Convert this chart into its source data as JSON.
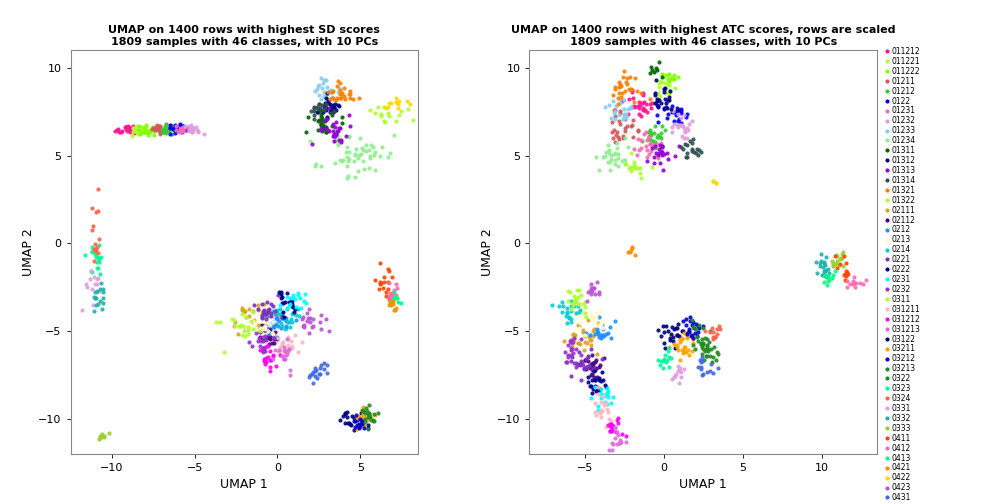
{
  "title1": "UMAP on 1400 rows with highest SD scores\n1809 samples with 46 classes, with 10 PCs",
  "title2": "UMAP on 1400 rows with highest ATC scores, rows are scaled\n1809 samples with 46 classes, with 10 PCs",
  "xlabel": "UMAP 1",
  "ylabel": "UMAP 2",
  "xlim1": [
    -12.5,
    8.5
  ],
  "ylim1": [
    -12,
    11
  ],
  "xlim2": [
    -8.5,
    13.5
  ],
  "ylim2": [
    -12,
    11
  ],
  "xticks1": [
    -10,
    -5,
    0,
    5
  ],
  "yticks1": [
    -10,
    -5,
    0,
    5,
    10
  ],
  "xticks2": [
    -5,
    0,
    5,
    10
  ],
  "yticks2": [
    -10,
    -5,
    0,
    5,
    10
  ],
  "classes": [
    "011212",
    "011221",
    "011222",
    "01211",
    "01212",
    "0122",
    "01231",
    "01232",
    "01233",
    "01234",
    "01311",
    "01312",
    "01313",
    "01314",
    "01321",
    "01322",
    "02111",
    "02112",
    "0212",
    "0213",
    "0214",
    "0221",
    "0222",
    "0231",
    "0232",
    "0311",
    "031211",
    "031212",
    "031213",
    "03122",
    "03211",
    "03212",
    "03213",
    "0322",
    "0323",
    "0324",
    "0331",
    "0332",
    "0333",
    "0411",
    "0412",
    "0413",
    "0421",
    "0422",
    "0423",
    "0431"
  ],
  "legend_colors": [
    "#FF1493",
    "#ADFF2F",
    "#7FFF00",
    "#CD5C5C",
    "#32CD32",
    "#0000FF",
    "#FF69B4",
    "#DDA0DD",
    "#87CEEB",
    "#90EE90",
    "#006400",
    "#000080",
    "#9400D3",
    "#2F4F4F",
    "#FF7F00",
    "#ADFF2F",
    "#DAA520",
    "#4B0082",
    "#1E90FF",
    "#FFFACD",
    "#00CED1",
    "#7B2FBE",
    "#00008B",
    "#00FFFF",
    "#9932CC",
    "#ADFF2F",
    "#FFB6C1",
    "#FF00FF",
    "#DA70D6",
    "#000080",
    "#FFA500",
    "#0000CD",
    "#228B22",
    "#228B22",
    "#00FA9A",
    "#FF6347",
    "#DDA0DD",
    "#20B2AA",
    "#9ACD32",
    "#FF4500",
    "#FF69B4",
    "#00FF7F",
    "#FF8C00",
    "#FFD700",
    "#BA55D3",
    "#4169E1"
  ],
  "seed": 42,
  "pt_size": 9
}
